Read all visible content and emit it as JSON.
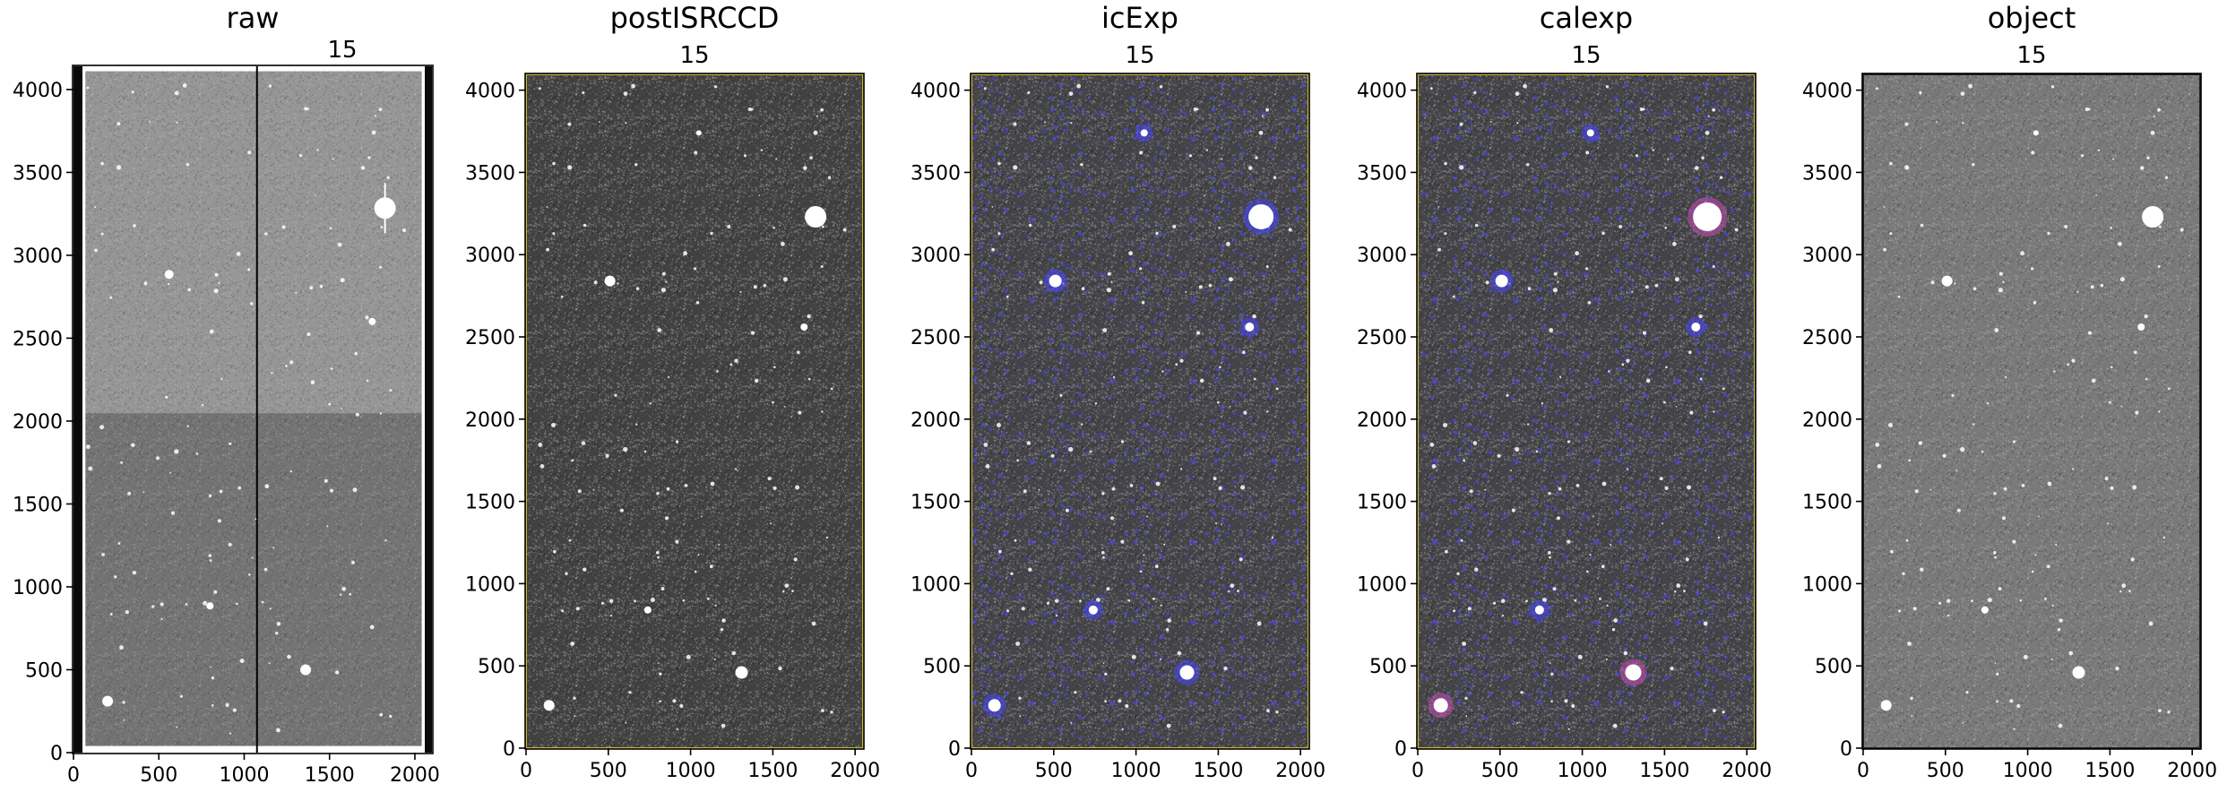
{
  "figure": {
    "panels": [
      {
        "id": "raw",
        "title": "raw",
        "ccd_label": "15",
        "xlim": [
          0,
          2100
        ],
        "ylim": [
          0,
          4140
        ],
        "data_xlim": [
          70,
          2040
        ],
        "data_ylim": [
          40,
          4110
        ],
        "xticks": [
          0,
          500,
          1000,
          1500,
          2000
        ],
        "yticks": [
          0,
          500,
          1000,
          1500,
          2000,
          2500,
          3000,
          3500,
          4000
        ],
        "upper_gray": "#969696",
        "lower_gray": "#737373",
        "boundary_y": 2048,
        "divider_x": 1075,
        "frame_color": "#ffffff",
        "left_edge": "#0a0a0a",
        "right_edge": "#0a0a0a",
        "bright_stars": [
          [
            1825,
            3285,
            12
          ],
          [
            560,
            2885,
            5
          ],
          [
            1360,
            500,
            6
          ],
          [
            200,
            310,
            6
          ],
          [
            800,
            885,
            4
          ],
          [
            1750,
            2600,
            4
          ]
        ]
      },
      {
        "id": "postISRCCD",
        "title": "postISRCCD",
        "ccd_label": "15",
        "xlim": [
          0,
          2048
        ],
        "ylim": [
          0,
          4096
        ],
        "xticks": [
          0,
          500,
          1000,
          1500,
          2000
        ],
        "yticks": [
          0,
          500,
          1000,
          1500,
          2000,
          2500,
          3000,
          3500,
          4000
        ],
        "background": "#414141",
        "border_color": "#c8b432",
        "bright_stars": [
          [
            1760,
            3230,
            12
          ],
          [
            510,
            2840,
            6
          ],
          [
            1310,
            460,
            7
          ],
          [
            140,
            260,
            6
          ],
          [
            740,
            840,
            4
          ],
          [
            1690,
            2560,
            4
          ],
          [
            1050,
            3740,
            3
          ]
        ]
      },
      {
        "id": "icExp",
        "title": "icExp",
        "ccd_label": "15",
        "xlim": [
          0,
          2048
        ],
        "ylim": [
          0,
          4096
        ],
        "xticks": [
          0,
          500,
          1000,
          1500,
          2000
        ],
        "yticks": [
          0,
          500,
          1000,
          1500,
          2000,
          2500,
          3000,
          3500,
          4000
        ],
        "background": "#434348",
        "border_color": "#c8b432",
        "mask_color": "#4646ff",
        "bright_stars": [
          [
            1760,
            3230,
            14
          ],
          [
            510,
            2840,
            7
          ],
          [
            1310,
            460,
            8
          ],
          [
            140,
            260,
            7
          ],
          [
            740,
            840,
            5
          ],
          [
            1690,
            2560,
            5
          ],
          [
            1050,
            3740,
            4
          ]
        ]
      },
      {
        "id": "calexp",
        "title": "calexp",
        "ccd_label": "15",
        "xlim": [
          0,
          2048
        ],
        "ylim": [
          0,
          4096
        ],
        "xticks": [
          0,
          500,
          1000,
          1500,
          2000
        ],
        "yticks": [
          0,
          500,
          1000,
          1500,
          2000,
          2500,
          3000,
          3500,
          4000
        ],
        "background": "#434348",
        "border_color": "#c8b432",
        "mask_color": "#4646ff",
        "saturated_color": "#c84cb4",
        "bright_stars": [
          [
            1760,
            3230,
            16
          ],
          [
            510,
            2840,
            7
          ],
          [
            1310,
            460,
            9
          ],
          [
            140,
            260,
            8
          ],
          [
            740,
            840,
            5
          ],
          [
            1690,
            2560,
            5
          ],
          [
            1050,
            3740,
            4
          ]
        ]
      },
      {
        "id": "object",
        "title": "object",
        "ccd_label": "15",
        "xlim": [
          0,
          2048
        ],
        "ylim": [
          0,
          4096
        ],
        "xticks": [
          0,
          500,
          1000,
          1500,
          2000
        ],
        "yticks": [
          0,
          500,
          1000,
          1500,
          2000,
          2500,
          3000,
          3500,
          4000
        ],
        "background": "#7a7a7a",
        "border_color": "#222222",
        "bright_stars": [
          [
            1760,
            3230,
            12
          ],
          [
            510,
            2840,
            6
          ],
          [
            1310,
            460,
            7
          ],
          [
            140,
            260,
            6
          ],
          [
            740,
            840,
            4
          ],
          [
            1690,
            2560,
            4
          ],
          [
            1050,
            3740,
            3
          ]
        ]
      }
    ]
  }
}
